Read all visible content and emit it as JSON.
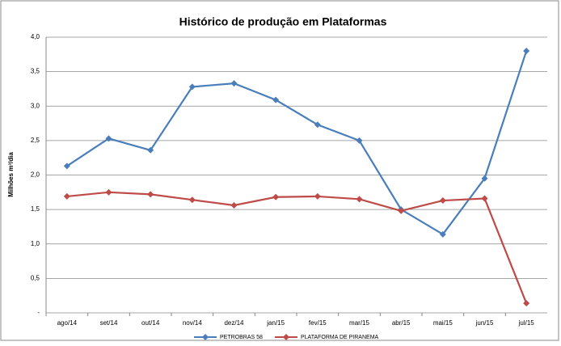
{
  "chart_data": {
    "type": "line",
    "title": "Histórico de produção em Plataformas",
    "y_label": "Milhões m³/dia",
    "categories": [
      "ago/14",
      "set/14",
      "out/14",
      "nov/14",
      "dez/14",
      "jan/15",
      "fev/15",
      "mar/15",
      "abr/15",
      "mai/15",
      "jun/15",
      "jul/15"
    ],
    "series": [
      {
        "name": "PETROBRAS 58",
        "color": "#4a7ebb",
        "values": [
          2.13,
          2.53,
          2.36,
          3.28,
          3.33,
          3.09,
          2.73,
          2.5,
          1.5,
          1.14,
          1.95,
          3.8
        ]
      },
      {
        "name": "PLATAFORMA DE PIRANEMA",
        "color": "#be4b48",
        "values": [
          1.69,
          1.75,
          1.72,
          1.64,
          1.56,
          1.68,
          1.69,
          1.65,
          1.48,
          1.63,
          1.66,
          0.14
        ]
      }
    ],
    "ylim": [
      0,
      4
    ],
    "yticks": [
      {
        "value": 0,
        "label": "-"
      },
      {
        "value": 0.5,
        "label": "0,5"
      },
      {
        "value": 1,
        "label": "1,0"
      },
      {
        "value": 1.5,
        "label": "1,5"
      },
      {
        "value": 2,
        "label": "2,0"
      },
      {
        "value": 2.5,
        "label": "2,5"
      },
      {
        "value": 3,
        "label": "3,0"
      },
      {
        "value": 3.5,
        "label": "3,5"
      },
      {
        "value": 4,
        "label": "4,0"
      }
    ],
    "grid": true,
    "legend": "bottom"
  }
}
